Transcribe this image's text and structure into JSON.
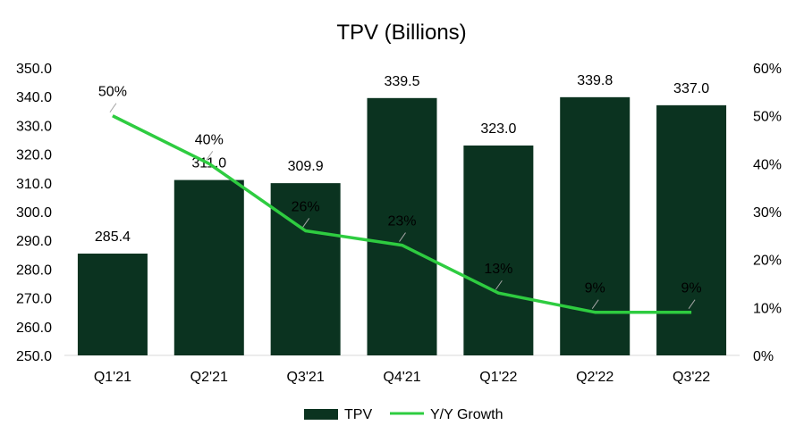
{
  "chart_data": {
    "type": "bar",
    "title": "TPV (Billions)",
    "categories": [
      "Q1'21",
      "Q2'21",
      "Q3'21",
      "Q4'21",
      "Q1'22",
      "Q2'22",
      "Q3'22"
    ],
    "series": [
      {
        "name": "TPV",
        "type": "bar",
        "axis": "left",
        "color": "#0b3320",
        "values": [
          285.4,
          311.0,
          309.9,
          339.5,
          323.0,
          339.8,
          337.0
        ],
        "labels": [
          "285.4",
          "311.0",
          "309.9",
          "339.5",
          "323.0",
          "339.8",
          "337.0"
        ]
      },
      {
        "name": "Y/Y Growth",
        "type": "line",
        "axis": "right",
        "color": "#2ecc40",
        "values": [
          50,
          40,
          26,
          23,
          13,
          9,
          9
        ],
        "labels": [
          "50%",
          "40%",
          "26%",
          "23%",
          "13%",
          "9%",
          "9%"
        ]
      }
    ],
    "y_left": {
      "range": [
        250,
        350
      ],
      "ticks": [
        "250.0",
        "260.0",
        "270.0",
        "280.0",
        "290.0",
        "300.0",
        "310.0",
        "320.0",
        "330.0",
        "340.0",
        "350.0"
      ]
    },
    "y_right": {
      "range": [
        0,
        60
      ],
      "ticks": [
        "0%",
        "10%",
        "20%",
        "30%",
        "40%",
        "50%",
        "60%"
      ]
    },
    "grid": false,
    "legend": "bottom-center"
  }
}
